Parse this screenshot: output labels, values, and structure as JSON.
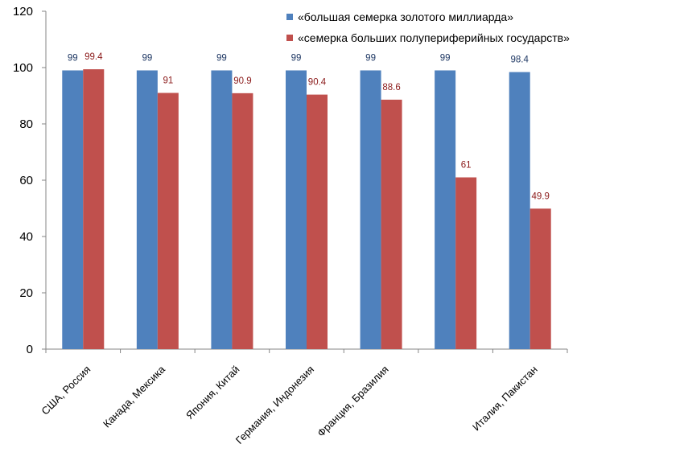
{
  "chart_data": {
    "type": "bar",
    "title": "",
    "xlabel": "",
    "ylabel": "",
    "ylim": [
      0,
      120
    ],
    "yticks": [
      0,
      20,
      40,
      60,
      80,
      100,
      120
    ],
    "grid": false,
    "legend_position": "top-right",
    "categories": [
      "США, Россия",
      "Канада, Мексика",
      "Япония, Китай",
      "Германия, Индонезия",
      "Франция, Бразилия",
      "",
      "Италия, Пакистан"
    ],
    "series": [
      {
        "name": "«большая семерка золотого миллиарда»",
        "color": "#4F81BD",
        "label_color": "#1F3864",
        "values": [
          99,
          99,
          99,
          99,
          99,
          99,
          98.4
        ],
        "labels": [
          "99",
          "99",
          "99",
          "99",
          "99",
          "99",
          "98.4"
        ]
      },
      {
        "name": "«семерка больших полупериферийных государств»",
        "color": "#C0504D",
        "label_color": "#8B1A1A",
        "values": [
          99.4,
          91,
          90.9,
          90.4,
          88.6,
          61,
          49.9
        ],
        "labels": [
          "99.4",
          "91",
          "90.9",
          "90.4",
          "88.6",
          "61",
          "49.9"
        ]
      }
    ]
  }
}
